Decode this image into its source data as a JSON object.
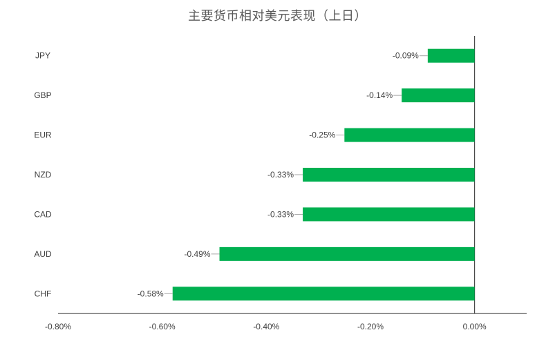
{
  "chart_data": {
    "type": "bar",
    "orientation": "horizontal",
    "title": "主要货币相对美元表现（上日）",
    "categories": [
      "JPY",
      "GBP",
      "EUR",
      "NZD",
      "CAD",
      "AUD",
      "CHF"
    ],
    "values": [
      -0.09,
      -0.14,
      -0.25,
      -0.33,
      -0.33,
      -0.49,
      -0.58
    ],
    "data_labels": [
      "-0.09%",
      "-0.14%",
      "-0.25%",
      "-0.33%",
      "-0.33%",
      "-0.49%",
      "-0.58%"
    ],
    "xlim": [
      -0.8,
      0.1
    ],
    "x_ticks": [
      -0.8,
      -0.6,
      -0.4,
      -0.2,
      0.0
    ],
    "x_tick_labels": [
      "-0.80%",
      "-0.60%",
      "-0.40%",
      "-0.20%",
      "0.00%"
    ],
    "bar_color": "#00B050",
    "grid": false,
    "legend": "none"
  }
}
